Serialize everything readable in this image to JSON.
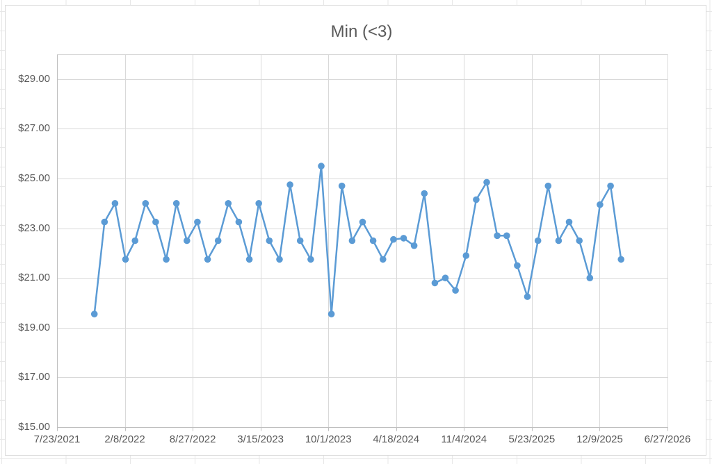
{
  "chart": {
    "kind": "embedded-excel-line-chart",
    "background": "#FFFFFF",
    "border_color": "#D9D9D9",
    "spreadsheet_gridline_color": "#E7E7E7"
  },
  "chart_data": {
    "type": "line",
    "title": "Min (<3)",
    "title_color": "#595959",
    "series_name": "Min (<3)",
    "series_color": "#5B9BD5",
    "marker": "circle",
    "legend": "none",
    "grid": {
      "horizontal": true,
      "vertical": true,
      "color": "#D9D9D9",
      "axis_color": "#BFBFBF"
    },
    "y_axis": {
      "min": 15,
      "max": 30,
      "major_unit": 2,
      "format": "currency",
      "tick_labels": [
        "$15.00",
        "$17.00",
        "$19.00",
        "$21.00",
        "$23.00",
        "$25.00",
        "$27.00",
        "$29.00"
      ]
    },
    "x_axis": {
      "type": "date",
      "domain": [
        "7/23/2021",
        "6/27/2026"
      ],
      "tick_labels": [
        "7/23/2021",
        "2/8/2022",
        "8/27/2022",
        "3/15/2023",
        "10/1/2023",
        "4/18/2024",
        "11/4/2024",
        "5/23/2025",
        "12/9/2025",
        "6/27/2026"
      ],
      "note": "data point dates estimated from pixel positions; points are monthly"
    },
    "dates": [
      "11/10/2021",
      "12/10/2021",
      "1/10/2022",
      "2/10/2022",
      "3/10/2022",
      "4/10/2022",
      "5/10/2022",
      "6/10/2022",
      "7/10/2022",
      "8/10/2022",
      "9/10/2022",
      "10/10/2022",
      "11/10/2022",
      "12/10/2022",
      "1/10/2023",
      "2/10/2023",
      "3/10/2023",
      "4/10/2023",
      "5/10/2023",
      "6/10/2023",
      "7/10/2023",
      "8/10/2023",
      "9/10/2023",
      "10/10/2023",
      "11/10/2023",
      "12/10/2023",
      "1/10/2024",
      "2/10/2024",
      "3/10/2024",
      "4/10/2024",
      "5/10/2024",
      "6/10/2024",
      "7/10/2024",
      "8/10/2024",
      "9/10/2024",
      "10/10/2024",
      "11/10/2024",
      "12/10/2024",
      "1/10/2025",
      "2/10/2025",
      "3/10/2025",
      "4/10/2025",
      "5/10/2025",
      "6/10/2025",
      "7/10/2025",
      "8/10/2025",
      "9/10/2025",
      "10/10/2025",
      "11/10/2025",
      "12/10/2025",
      "1/10/2026",
      "2/10/2026"
    ],
    "values": [
      19.55,
      23.25,
      24.0,
      21.75,
      22.5,
      24.0,
      23.25,
      21.75,
      24.0,
      22.5,
      23.25,
      21.75,
      22.5,
      24.0,
      23.25,
      21.75,
      24.0,
      22.5,
      21.75,
      24.75,
      22.5,
      21.75,
      25.5,
      19.55,
      24.7,
      22.5,
      23.25,
      22.5,
      21.75,
      22.55,
      22.6,
      22.3,
      24.4,
      20.8,
      21.0,
      20.5,
      21.9,
      24.15,
      24.85,
      22.7,
      22.7,
      21.5,
      20.25,
      22.5,
      24.7,
      22.5,
      23.25,
      22.5,
      21.0,
      23.95,
      24.7,
      21.75
    ]
  }
}
